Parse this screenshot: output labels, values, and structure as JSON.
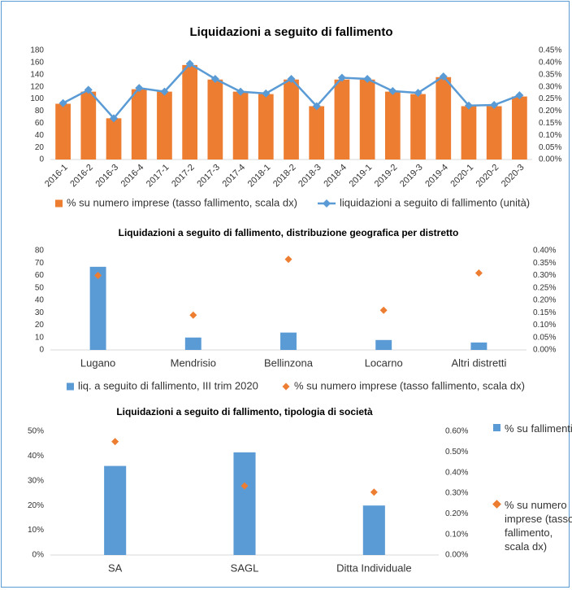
{
  "chart_data": [
    {
      "type": "bar",
      "title": "Liquidazioni a seguito di fallimento",
      "categories": [
        "2016-1",
        "2016-2",
        "2016-3",
        "2016-4",
        "2017-1",
        "2017-2",
        "2017-3",
        "2017-4",
        "2018-1",
        "2018-2",
        "2018-3",
        "2018-4",
        "2019-1",
        "2019-2",
        "2019-3",
        "2019-4",
        "2020-1",
        "2020-2",
        "2020-3"
      ],
      "series": [
        {
          "name": "% su numero imprese (tasso fallimento, scala dx)",
          "type": "bar",
          "axis": "y2",
          "color": "#ed7d31",
          "values": [
            0.23,
            0.28,
            0.17,
            0.29,
            0.28,
            0.39,
            0.33,
            0.28,
            0.27,
            0.33,
            0.22,
            0.33,
            0.33,
            0.28,
            0.27,
            0.34,
            0.22,
            0.22,
            0.26
          ]
        },
        {
          "name": "liquidazioni a seguito di fallimento (unità)",
          "type": "line",
          "axis": "y",
          "color": "#5b9bd5",
          "values": [
            93,
            115,
            68,
            118,
            112,
            158,
            133,
            112,
            109,
            133,
            88,
            135,
            133,
            113,
            110,
            137,
            89,
            90,
            106
          ]
        }
      ],
      "ylim": [
        0,
        180
      ],
      "yticks": [
        0,
        20,
        40,
        60,
        80,
        100,
        120,
        140,
        160,
        180
      ],
      "y2lim": [
        0,
        0.45
      ],
      "y2ticks": [
        {
          "value": 0,
          "label": "0.00%"
        },
        {
          "value": 0.05,
          "label": "0.05%"
        },
        {
          "value": 0.1,
          "label": "0.10%"
        },
        {
          "value": 0.15,
          "label": "0.15%"
        },
        {
          "value": 0.2,
          "label": "0.20%"
        },
        {
          "value": 0.25,
          "label": "0.25%"
        },
        {
          "value": 0.3,
          "label": "0.30%"
        },
        {
          "value": 0.35,
          "label": "0.35%"
        },
        {
          "value": 0.4,
          "label": "0.40%"
        },
        {
          "value": 0.45,
          "label": "0.45%"
        }
      ],
      "legend": "bottom"
    },
    {
      "type": "bar",
      "title": "Liquidazioni a seguito di fallimento, distribuzione geografica per distretto",
      "categories": [
        "Lugano",
        "Mendrisio",
        "Bellinzona",
        "Locarno",
        "Altri distretti"
      ],
      "series": [
        {
          "name": "liq. a seguito di fallimento, III trim 2020",
          "type": "bar",
          "axis": "y",
          "color": "#5b9bd5",
          "values": [
            67,
            10,
            14,
            8,
            6
          ]
        },
        {
          "name": "% su numero imprese (tasso fallimento, scala dx)",
          "type": "scatter",
          "axis": "y2",
          "color": "#ed7d31",
          "values": [
            0.3,
            0.14,
            0.365,
            0.16,
            0.31
          ]
        }
      ],
      "ylim": [
        0,
        80
      ],
      "yticks": [
        0,
        10,
        20,
        30,
        40,
        50,
        60,
        70,
        80
      ],
      "y2lim": [
        0,
        0.4
      ],
      "y2ticks": [
        {
          "value": 0,
          "label": "0.00%"
        },
        {
          "value": 0.05,
          "label": "0.05%"
        },
        {
          "value": 0.1,
          "label": "0.10%"
        },
        {
          "value": 0.15,
          "label": "0.15%"
        },
        {
          "value": 0.2,
          "label": "0.20%"
        },
        {
          "value": 0.25,
          "label": "0.25%"
        },
        {
          "value": 0.3,
          "label": "0.30%"
        },
        {
          "value": 0.35,
          "label": "0.35%"
        },
        {
          "value": 0.4,
          "label": "0.40%"
        }
      ],
      "legend": "bottom"
    },
    {
      "type": "bar",
      "title": "Liquidazioni a seguito di fallimento, tipologia di società",
      "categories": [
        "SA",
        "SAGL",
        "Ditta Individuale"
      ],
      "series": [
        {
          "name": "% su fallimenti",
          "type": "bar",
          "axis": "y",
          "color": "#5b9bd5",
          "values": [
            36,
            41.5,
            20
          ]
        },
        {
          "name": "% su numero imprese (tasso fallimento, scala dx)",
          "type": "scatter",
          "axis": "y2",
          "color": "#ed7d31",
          "values": [
            0.55,
            0.335,
            0.305
          ]
        }
      ],
      "ylim": [
        0,
        50
      ],
      "yticks": [
        {
          "value": 0,
          "label": "0%"
        },
        {
          "value": 10,
          "label": "10%"
        },
        {
          "value": 20,
          "label": "20%"
        },
        {
          "value": 30,
          "label": "30%"
        },
        {
          "value": 40,
          "label": "40%"
        },
        {
          "value": 50,
          "label": "50%"
        }
      ],
      "y2lim": [
        0,
        0.6
      ],
      "y2ticks": [
        {
          "value": 0,
          "label": "0.00%"
        },
        {
          "value": 0.1,
          "label": "0.10%"
        },
        {
          "value": 0.2,
          "label": "0.20%"
        },
        {
          "value": 0.3,
          "label": "0.30%"
        },
        {
          "value": 0.4,
          "label": "0.40%"
        },
        {
          "value": 0.5,
          "label": "0.50%"
        },
        {
          "value": 0.6,
          "label": "0.60%"
        }
      ],
      "legend": "right"
    }
  ]
}
